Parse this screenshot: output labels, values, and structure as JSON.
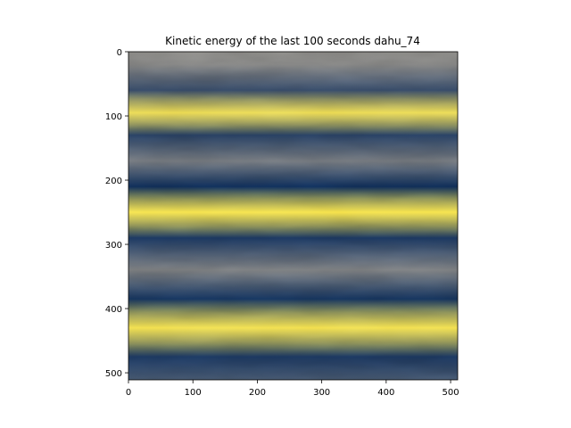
{
  "chart_data": {
    "type": "heatmap",
    "title": "Kinetic energy of the last 100 seconds dahu_74",
    "xlabel": "",
    "ylabel": "",
    "xlim": [
      0,
      511
    ],
    "ylim": [
      511,
      0
    ],
    "x_ticks": [
      "0",
      "100",
      "200",
      "300",
      "400",
      "500"
    ],
    "y_ticks": [
      "0",
      "100",
      "200",
      "300",
      "400",
      "500"
    ],
    "colormap": "cividis",
    "colors": {
      "low": "#00204d",
      "mid": "#7c7b78",
      "high": "#ffe945"
    },
    "bands": [
      {
        "y": 0,
        "level": 0.5
      },
      {
        "y": 20,
        "level": 0.48
      },
      {
        "y": 60,
        "level": 0.2
      },
      {
        "y": 95,
        "level": 0.92
      },
      {
        "y": 130,
        "level": 0.15
      },
      {
        "y": 170,
        "level": 0.42
      },
      {
        "y": 210,
        "level": 0.06
      },
      {
        "y": 250,
        "level": 0.97
      },
      {
        "y": 290,
        "level": 0.1
      },
      {
        "y": 340,
        "level": 0.45
      },
      {
        "y": 385,
        "level": 0.08
      },
      {
        "y": 430,
        "level": 0.95
      },
      {
        "y": 475,
        "level": 0.1
      },
      {
        "y": 511,
        "level": 0.25
      }
    ]
  }
}
